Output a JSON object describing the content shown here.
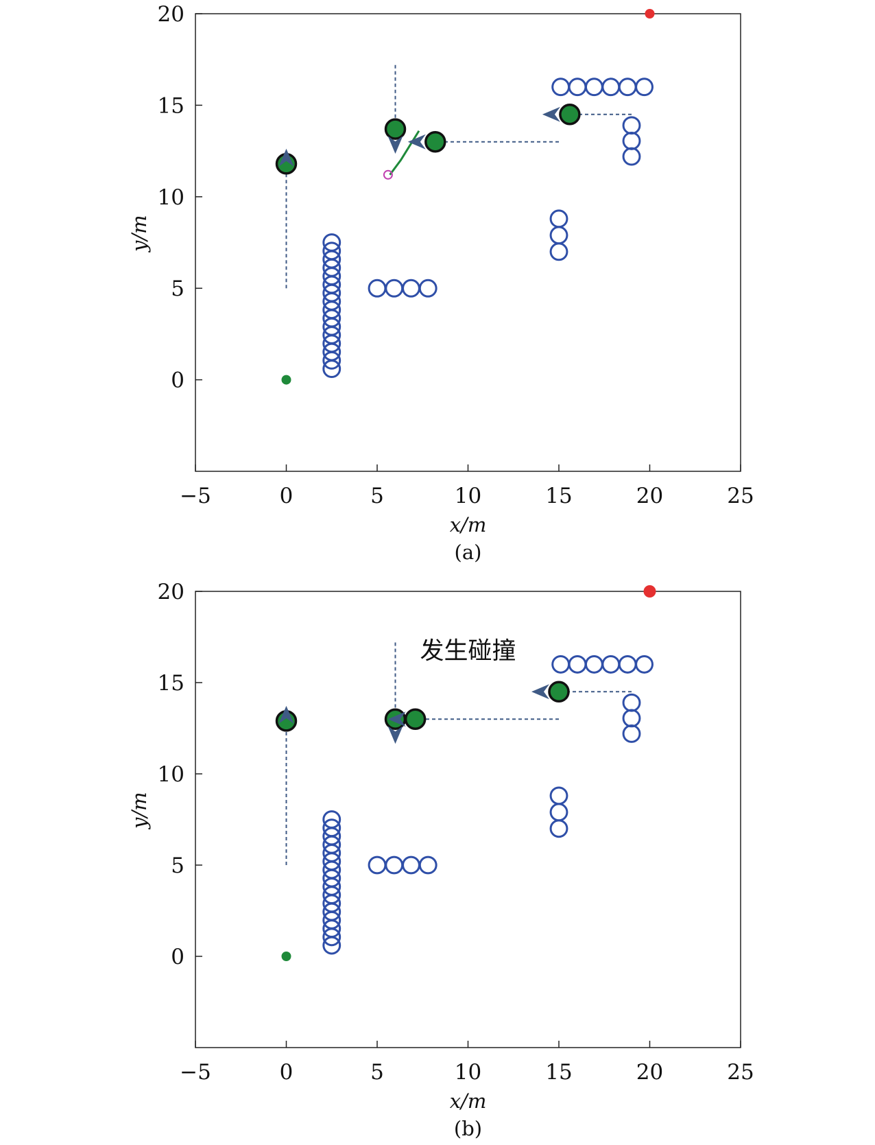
{
  "chart_data": [
    {
      "type": "scatter",
      "panel_label": "(a)",
      "xlabel": "x/m",
      "ylabel": "y/m",
      "xlim": [
        -5,
        25
      ],
      "ylim": [
        -5,
        20
      ],
      "xticks": [
        "−5",
        "0",
        "5",
        "10",
        "15",
        "20",
        "25"
      ],
      "yticks": [
        "0",
        "5",
        "10",
        "15",
        "20"
      ],
      "grid": false,
      "legend": "none",
      "annotation": "",
      "colors": {
        "obstacle": "#2f4fa8",
        "robot_fill": "#1f8a3a",
        "robot_edge": "#111111",
        "start": "#1f8a3a",
        "goal": "#e53030",
        "trajectory": "#3f5a85",
        "path": "#1f8a3a",
        "target": "#c040b0"
      },
      "start": {
        "x": 0,
        "y": 0
      },
      "goal": {
        "x": 20,
        "y": 20
      },
      "obstacles": {
        "radius": 0.45,
        "groups": [
          {
            "orientation": "vertical",
            "x": 2.5,
            "y_from": 0.6,
            "y_to": 7.5,
            "count": 16
          },
          {
            "orientation": "horizontal",
            "y": 5.0,
            "x_from": 5.0,
            "x_to": 7.8,
            "count": 4
          },
          {
            "orientation": "vertical",
            "x": 15.0,
            "y_from": 7.0,
            "y_to": 8.8,
            "count": 3
          },
          {
            "orientation": "horizontal",
            "y": 16.0,
            "x_from": 15.1,
            "x_to": 19.7,
            "count": 6
          },
          {
            "orientation": "vertical",
            "x": 19.0,
            "y_from": 12.2,
            "y_to": 13.9,
            "count": 3
          }
        ]
      },
      "agents": [
        {
          "x": 0.0,
          "y": 11.8,
          "trail_from": [
            0.0,
            5.0
          ],
          "trail_to": [
            0.0,
            11.8
          ],
          "heading": "up"
        },
        {
          "x": 6.0,
          "y": 13.7,
          "trail_from": [
            6.0,
            17.2
          ],
          "trail_to": [
            6.0,
            13.7
          ],
          "heading": "down"
        },
        {
          "x": 8.2,
          "y": 13.0,
          "trail_from": [
            15.0,
            13.0
          ],
          "trail_to": [
            8.2,
            13.0
          ],
          "heading": "left"
        },
        {
          "x": 15.6,
          "y": 14.5,
          "trail_from": [
            19.0,
            14.5
          ],
          "trail_to": [
            15.6,
            14.5
          ],
          "heading": "left"
        }
      ],
      "path": [
        [
          5.7,
          11.2
        ],
        [
          6.3,
          12.0
        ],
        [
          6.8,
          12.8
        ],
        [
          7.3,
          13.6
        ]
      ],
      "target": {
        "x": 5.6,
        "y": 11.2
      }
    },
    {
      "type": "scatter",
      "panel_label": "(b)",
      "xlabel": "x/m",
      "ylabel": "y/m",
      "xlim": [
        -5,
        25
      ],
      "ylim": [
        -5,
        20
      ],
      "xticks": [
        "−5",
        "0",
        "5",
        "10",
        "15",
        "20",
        "25"
      ],
      "yticks": [
        "0",
        "5",
        "10",
        "15",
        "20"
      ],
      "grid": false,
      "legend": "none",
      "annotation": "发生碰撞",
      "annotation_pos": {
        "x": 10.0,
        "y": 16.3
      },
      "colors": {
        "obstacle": "#2f4fa8",
        "robot_fill": "#1f8a3a",
        "robot_edge": "#111111",
        "start": "#1f8a3a",
        "goal": "#e53030",
        "trajectory": "#3f5a85",
        "path": "#1f8a3a",
        "target": "#c040b0"
      },
      "start": {
        "x": 0,
        "y": 0
      },
      "goal": {
        "x": 20,
        "y": 20
      },
      "obstacles": {
        "radius": 0.45,
        "groups": [
          {
            "orientation": "vertical",
            "x": 2.5,
            "y_from": 0.6,
            "y_to": 7.5,
            "count": 16
          },
          {
            "orientation": "horizontal",
            "y": 5.0,
            "x_from": 5.0,
            "x_to": 7.8,
            "count": 4
          },
          {
            "orientation": "vertical",
            "x": 15.0,
            "y_from": 7.0,
            "y_to": 8.8,
            "count": 3
          },
          {
            "orientation": "horizontal",
            "y": 16.0,
            "x_from": 15.1,
            "x_to": 19.7,
            "count": 6
          },
          {
            "orientation": "vertical",
            "x": 19.0,
            "y_from": 12.2,
            "y_to": 13.9,
            "count": 3
          }
        ]
      },
      "agents": [
        {
          "x": 0.0,
          "y": 12.9,
          "trail_from": [
            0.0,
            5.0
          ],
          "trail_to": [
            0.0,
            12.9
          ],
          "heading": "up"
        },
        {
          "x": 6.0,
          "y": 13.0,
          "trail_from": [
            6.0,
            17.2
          ],
          "trail_to": [
            6.0,
            13.0
          ],
          "heading": "down"
        },
        {
          "x": 7.1,
          "y": 13.0,
          "trail_from": [
            15.0,
            13.0
          ],
          "trail_to": [
            7.1,
            13.0
          ],
          "heading": "left"
        },
        {
          "x": 15.0,
          "y": 14.5,
          "trail_from": [
            19.0,
            14.5
          ],
          "trail_to": [
            15.0,
            14.5
          ],
          "heading": "left"
        }
      ],
      "path": [],
      "target": {
        "x": 7.1,
        "y": 13.0
      }
    }
  ]
}
